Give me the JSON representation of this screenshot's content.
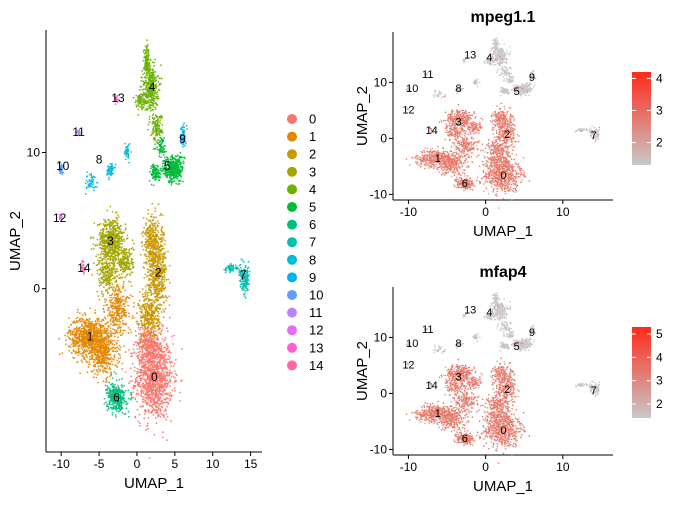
{
  "chart_data": [
    {
      "type": "scatter",
      "title": "",
      "xlabel": "UMAP_1",
      "ylabel": "UMAP_2",
      "xlim": [
        -12,
        16.5
      ],
      "ylim": [
        -12,
        19
      ],
      "xticks": [
        {
          "v": -10,
          "label": "-10"
        },
        {
          "v": -5,
          "label": "-5"
        },
        {
          "v": 0,
          "label": "0"
        },
        {
          "v": 5,
          "label": "5"
        },
        {
          "v": 10,
          "label": "10"
        },
        {
          "v": 15,
          "label": "15"
        }
      ],
      "yticks": [
        {
          "v": 0,
          "label": "0"
        },
        {
          "v": 10,
          "label": "10"
        }
      ],
      "grid": false,
      "legend_position": "right",
      "legend": [
        {
          "label": "0",
          "color": "#F8766D"
        },
        {
          "label": "1",
          "color": "#E58700"
        },
        {
          "label": "2",
          "color": "#C99800"
        },
        {
          "label": "3",
          "color": "#A3A500"
        },
        {
          "label": "4",
          "color": "#6BB100"
        },
        {
          "label": "5",
          "color": "#00BA38"
        },
        {
          "label": "6",
          "color": "#00BF7D"
        },
        {
          "label": "7",
          "color": "#00C0AF"
        },
        {
          "label": "8",
          "color": "#00BCD8"
        },
        {
          "label": "9",
          "color": "#00B0F6"
        },
        {
          "label": "10",
          "color": "#619CFF"
        },
        {
          "label": "11",
          "color": "#B983FF"
        },
        {
          "label": "12",
          "color": "#E76BF3"
        },
        {
          "label": "13",
          "color": "#FD61D1"
        },
        {
          "label": "14",
          "color": "#FF67A4"
        }
      ],
      "clusters": [
        {
          "label": "0",
          "x": 2.3,
          "y": -6.5,
          "color": "#F8766D"
        },
        {
          "label": "1",
          "x": -6.2,
          "y": -3.5,
          "color": "#E58700"
        },
        {
          "label": "2",
          "x": 2.8,
          "y": 1.2,
          "color": "#C99800"
        },
        {
          "label": "3",
          "x": -3.5,
          "y": 3.5,
          "color": "#A3A500"
        },
        {
          "label": "4",
          "x": 2.0,
          "y": 14.8,
          "color": "#6BB100"
        },
        {
          "label": "5",
          "x": 4.0,
          "y": 9.0,
          "color": "#00BA38"
        },
        {
          "label": "6",
          "x": -2.7,
          "y": -8.0,
          "color": "#00BF7D"
        },
        {
          "label": "7",
          "x": 14.0,
          "y": 1.0,
          "color": "#00C0AF"
        },
        {
          "label": "8",
          "x": -5.0,
          "y": 9.5,
          "color": "#00BCD8"
        },
        {
          "label": "9",
          "x": 6.0,
          "y": 11.0,
          "color": "#00B0F6"
        },
        {
          "label": "10",
          "x": -9.8,
          "y": 9.0,
          "color": "#619CFF"
        },
        {
          "label": "11",
          "x": -7.7,
          "y": 11.5,
          "color": "#B983FF"
        },
        {
          "label": "12",
          "x": -10.2,
          "y": 5.2,
          "color": "#E76BF3"
        },
        {
          "label": "13",
          "x": -2.5,
          "y": 14.0,
          "color": "#FD61D1"
        },
        {
          "label": "14",
          "x": -7.0,
          "y": 1.5,
          "color": "#FF67A4"
        }
      ]
    },
    {
      "type": "scatter",
      "title": "mpeg1.1",
      "xlabel": "UMAP_1",
      "ylabel": "UMAP_2",
      "xlim": [
        -12,
        16.5
      ],
      "ylim": [
        -11,
        19
      ],
      "xticks": [
        {
          "v": -10,
          "label": "-10"
        },
        {
          "v": 0,
          "label": "0"
        },
        {
          "v": 10,
          "label": "10"
        }
      ],
      "yticks": [
        {
          "v": -10,
          "label": "-10"
        },
        {
          "v": 0,
          "label": "0"
        },
        {
          "v": 10,
          "label": "10"
        }
      ],
      "grid": false,
      "colorbar": {
        "min": 1.3,
        "max": 4.2,
        "ticks": [
          2,
          3,
          4
        ],
        "low_color": "#C8C8C8",
        "high_color": "#FF2A1A",
        "position": "right"
      },
      "cluster_labels": [
        {
          "label": "0",
          "x": 2.3,
          "y": -6.5
        },
        {
          "label": "1",
          "x": -6.2,
          "y": -3.5
        },
        {
          "label": "2",
          "x": 2.8,
          "y": 0.8
        },
        {
          "label": "3",
          "x": -3.5,
          "y": 3.0
        },
        {
          "label": "4",
          "x": 0.5,
          "y": 14.5
        },
        {
          "label": "5",
          "x": 4.0,
          "y": 8.5
        },
        {
          "label": "6",
          "x": -2.7,
          "y": -8.0
        },
        {
          "label": "7",
          "x": 14.0,
          "y": 0.6
        },
        {
          "label": "8",
          "x": -3.5,
          "y": 9.0
        },
        {
          "label": "9",
          "x": 6.0,
          "y": 11.0
        },
        {
          "label": "10",
          "x": -9.5,
          "y": 9.0
        },
        {
          "label": "11",
          "x": -7.5,
          "y": 11.5
        },
        {
          "label": "12",
          "x": -10.0,
          "y": 5.2
        },
        {
          "label": "13",
          "x": -2.0,
          "y": 15.0
        },
        {
          "label": "14",
          "x": -7.0,
          "y": 1.5
        }
      ]
    },
    {
      "type": "scatter",
      "title": "mfap4",
      "xlabel": "UMAP_1",
      "ylabel": "UMAP_2",
      "xlim": [
        -12,
        16.5
      ],
      "ylim": [
        -11,
        19
      ],
      "xticks": [
        {
          "v": -10,
          "label": "-10"
        },
        {
          "v": 0,
          "label": "0"
        },
        {
          "v": 10,
          "label": "10"
        }
      ],
      "yticks": [
        {
          "v": -10,
          "label": "-10"
        },
        {
          "v": 0,
          "label": "0"
        },
        {
          "v": 10,
          "label": "10"
        }
      ],
      "grid": false,
      "colorbar": {
        "min": 1.4,
        "max": 5.3,
        "ticks": [
          2,
          3,
          4,
          5
        ],
        "low_color": "#C8C8C8",
        "high_color": "#FF2A1A",
        "position": "right"
      },
      "cluster_labels": [
        {
          "label": "0",
          "x": 2.3,
          "y": -6.5
        },
        {
          "label": "1",
          "x": -6.2,
          "y": -3.5
        },
        {
          "label": "2",
          "x": 2.8,
          "y": 0.8
        },
        {
          "label": "3",
          "x": -3.5,
          "y": 3.0
        },
        {
          "label": "4",
          "x": 0.5,
          "y": 14.5
        },
        {
          "label": "5",
          "x": 4.0,
          "y": 8.5
        },
        {
          "label": "6",
          "x": -2.7,
          "y": -8.0
        },
        {
          "label": "7",
          "x": 14.0,
          "y": 0.6
        },
        {
          "label": "8",
          "x": -3.5,
          "y": 9.0
        },
        {
          "label": "9",
          "x": 6.0,
          "y": 11.0
        },
        {
          "label": "10",
          "x": -9.5,
          "y": 9.0
        },
        {
          "label": "11",
          "x": -7.5,
          "y": 11.5
        },
        {
          "label": "12",
          "x": -10.0,
          "y": 5.2
        },
        {
          "label": "13",
          "x": -2.0,
          "y": 15.0
        },
        {
          "label": "14",
          "x": -7.0,
          "y": 1.5
        }
      ]
    }
  ]
}
